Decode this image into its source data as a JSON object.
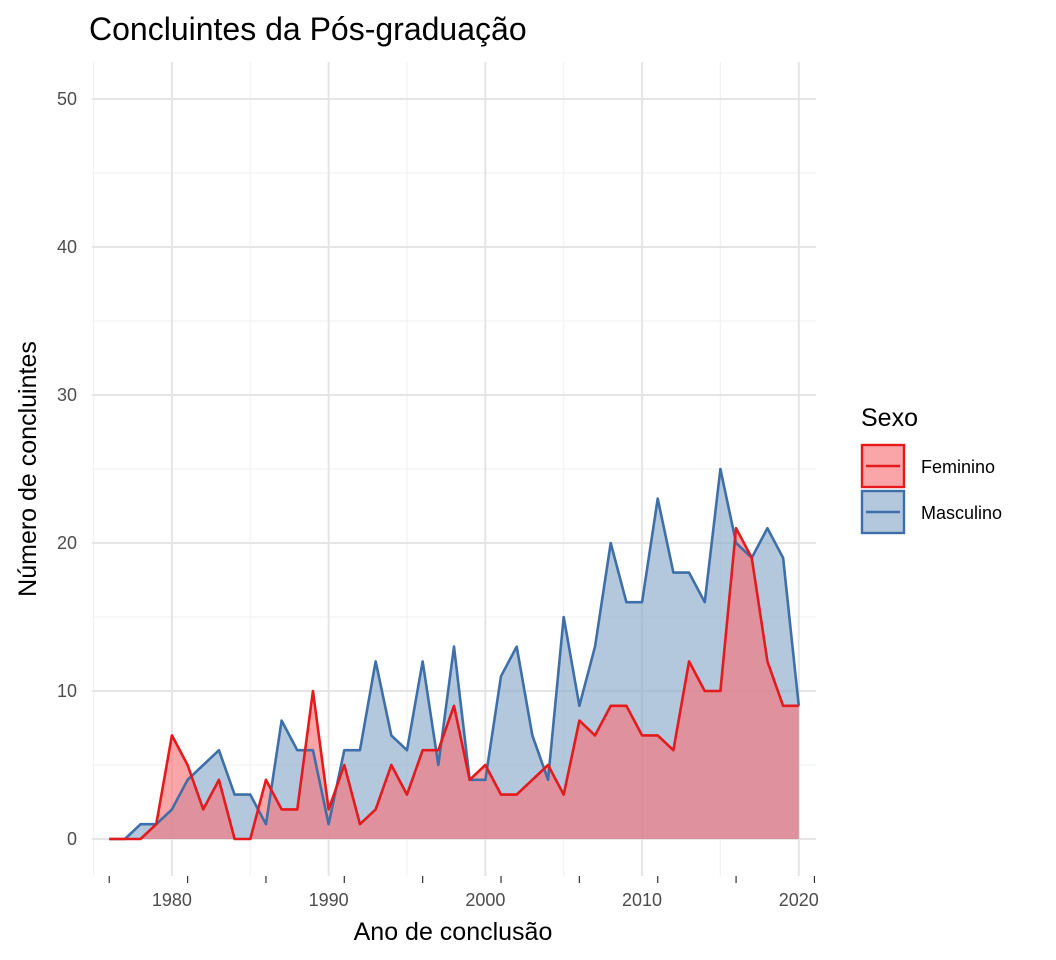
{
  "chart_data": {
    "type": "area",
    "title": "Concluintes da Pós-graduação",
    "xlabel": "Ano de conclusão",
    "ylabel": "Número de concluintes",
    "xlim": [
      1974.9,
      2021.1
    ],
    "ylim": [
      -2.5,
      52.5
    ],
    "x_ticks": [
      1980,
      1990,
      2000,
      2010,
      2020
    ],
    "y_ticks": [
      0,
      10,
      20,
      30,
      40,
      50
    ],
    "grid": true,
    "legend": {
      "title": "Sexo",
      "position": "right"
    },
    "x": [
      1976,
      1977,
      1978,
      1979,
      1980,
      1981,
      1982,
      1983,
      1984,
      1985,
      1986,
      1987,
      1988,
      1989,
      1990,
      1991,
      1992,
      1993,
      1994,
      1995,
      1996,
      1997,
      1998,
      1999,
      2000,
      2001,
      2002,
      2003,
      2004,
      2005,
      2006,
      2007,
      2008,
      2009,
      2010,
      2011,
      2012,
      2013,
      2014,
      2015,
      2016,
      2017,
      2018,
      2019,
      2020
    ],
    "series": [
      {
        "name": "Feminino",
        "line_color": "#e41a1c",
        "fill_color": "#f8767b",
        "values": [
          0,
          0,
          0,
          1,
          7,
          5,
          2,
          4,
          0,
          0,
          4,
          2,
          2,
          10,
          2,
          5,
          1,
          2,
          5,
          3,
          6,
          6,
          9,
          4,
          5,
          3,
          3,
          4,
          5,
          3,
          8,
          7,
          9,
          9,
          7,
          7,
          6,
          12,
          10,
          10,
          21,
          19,
          12,
          9,
          9
        ]
      },
      {
        "name": "Masculino",
        "line_color": "#3e6fa8",
        "fill_color": "#8aa9cb",
        "values": [
          0,
          0,
          1,
          1,
          2,
          4,
          5,
          6,
          3,
          3,
          1,
          8,
          6,
          6,
          1,
          6,
          6,
          12,
          7,
          6,
          12,
          5,
          13,
          4,
          4,
          11,
          13,
          7,
          4,
          15,
          9,
          13,
          20,
          16,
          16,
          23,
          18,
          18,
          16,
          25,
          20,
          19,
          21,
          19,
          9
        ]
      }
    ]
  }
}
